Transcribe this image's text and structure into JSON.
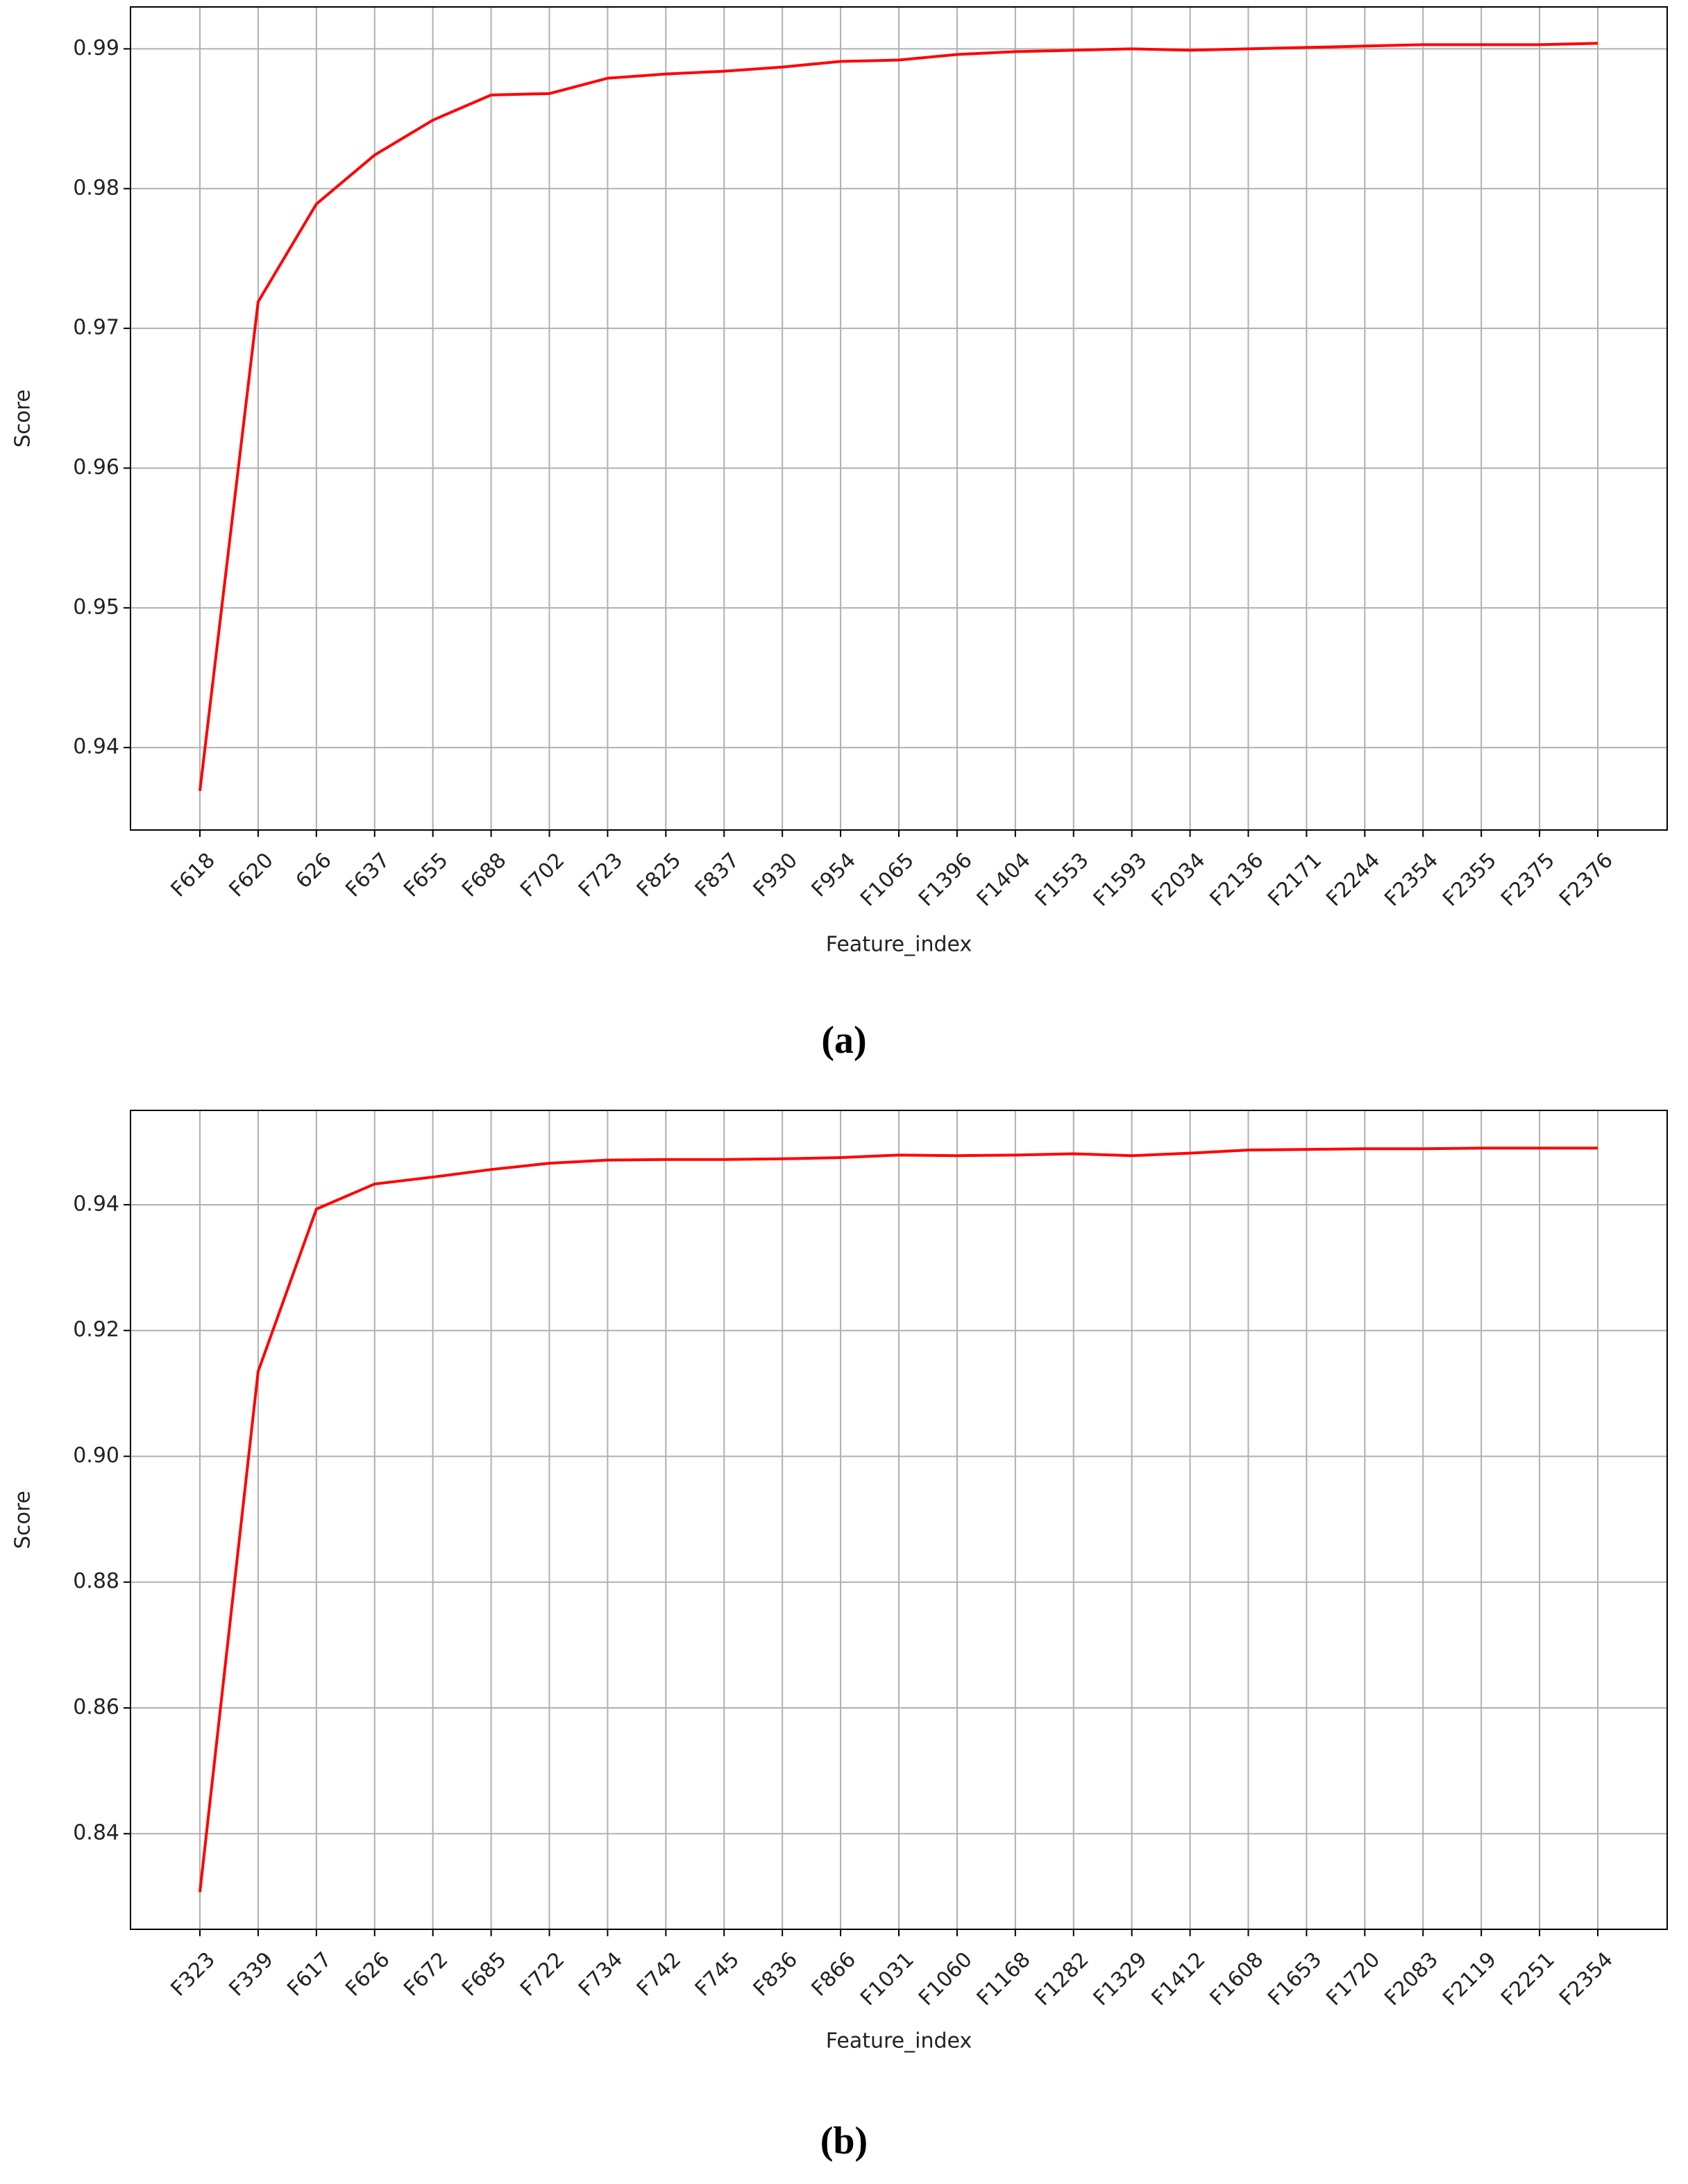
{
  "chart_data": [
    {
      "type": "line",
      "caption": "(a)",
      "x_label": "Feature_index",
      "y_label": "Score",
      "categories": [
        "F618",
        "F620",
        "626",
        "F637",
        "F655",
        "F688",
        "F702",
        "F723",
        "F825",
        "F837",
        "F930",
        "F954",
        "F1065",
        "F1396",
        "F1404",
        "F1553",
        "F1593",
        "F2034",
        "F2136",
        "F2171",
        "F2244",
        "F2354",
        "F2355",
        "F2375",
        "F2376"
      ],
      "series": [
        {
          "color": "#ff0000",
          "values": [
            0.9369,
            0.9719,
            0.9789,
            0.9824,
            0.9849,
            0.9867,
            0.9868,
            0.9879,
            0.9882,
            0.9884,
            0.9887,
            0.9891,
            0.9892,
            0.9896,
            0.9898,
            0.9899,
            0.99,
            0.9899,
            0.99,
            0.9901,
            0.9902,
            0.9903,
            0.9903,
            0.9903,
            0.9904
          ]
        }
      ],
      "ylim": [
        0.9341,
        0.993
      ],
      "yticks": [
        0.94,
        0.95,
        0.96,
        0.97,
        0.98,
        0.99
      ],
      "grid": true
    },
    {
      "type": "line",
      "caption": "(b)",
      "x_label": "Feature_index",
      "y_label": "Score",
      "categories": [
        "F323",
        "F339",
        "F617",
        "F626",
        "F672",
        "F685",
        "F722",
        "F734",
        "F742",
        "F745",
        "F836",
        "F866",
        "F1031",
        "F1060",
        "F1168",
        "F1282",
        "F1329",
        "F1412",
        "F1608",
        "F1653",
        "F1720",
        "F2083",
        "F2119",
        "F2251",
        "F2354"
      ],
      "series": [
        {
          "color": "#ff0000",
          "values": [
            0.8307,
            0.9135,
            0.9393,
            0.9433,
            0.9444,
            0.9456,
            0.9466,
            0.9471,
            0.9472,
            0.9472,
            0.9473,
            0.9475,
            0.9479,
            0.9478,
            0.9479,
            0.9481,
            0.9478,
            0.9482,
            0.9487,
            0.9488,
            0.9489,
            0.9489,
            0.949,
            0.949,
            0.949
          ]
        }
      ],
      "ylim": [
        0.8248,
        0.955
      ],
      "yticks": [
        0.84,
        0.86,
        0.88,
        {
          "value": 0.9,
          "label": "0.90"
        },
        0.92,
        0.94
      ],
      "grid": true
    }
  ]
}
